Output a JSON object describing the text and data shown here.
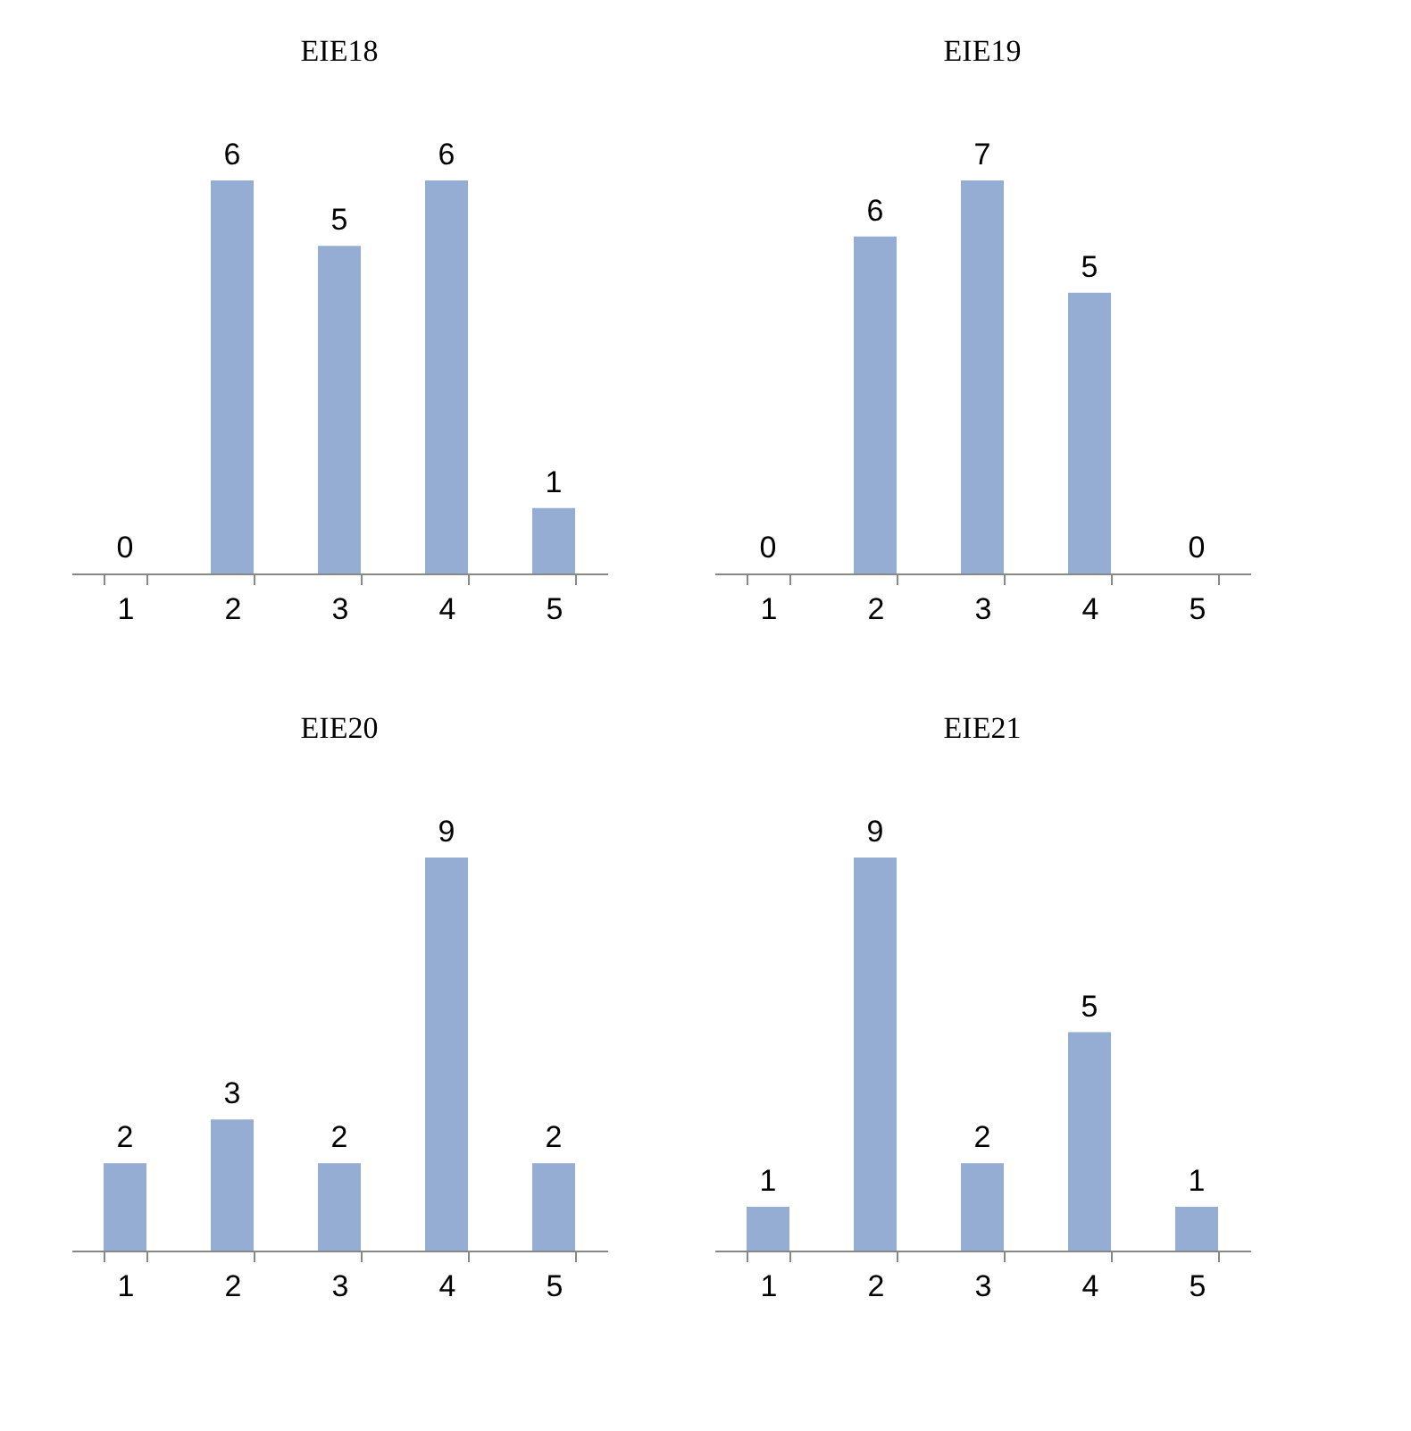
{
  "chart_data": [
    {
      "type": "bar",
      "title": "EIE18",
      "categories": [
        "1",
        "2",
        "3",
        "4",
        "5"
      ],
      "values": [
        0,
        6,
        5,
        6,
        1
      ],
      "color": "#95acd3",
      "data_labels": true
    },
    {
      "type": "bar",
      "title": "EIE19",
      "categories": [
        "1",
        "2",
        "3",
        "4",
        "5"
      ],
      "values": [
        0,
        6,
        7,
        5,
        0
      ],
      "color": "#95acd3",
      "data_labels": true
    },
    {
      "type": "bar",
      "title": "EIE20",
      "categories": [
        "1",
        "2",
        "3",
        "4",
        "5"
      ],
      "values": [
        2,
        3,
        2,
        9,
        2
      ],
      "color": "#95acd3",
      "data_labels": true
    },
    {
      "type": "bar",
      "title": "EIE21",
      "categories": [
        "1",
        "2",
        "3",
        "4",
        "5"
      ],
      "values": [
        1,
        9,
        2,
        5,
        1
      ],
      "color": "#95acd3",
      "data_labels": true
    }
  ]
}
